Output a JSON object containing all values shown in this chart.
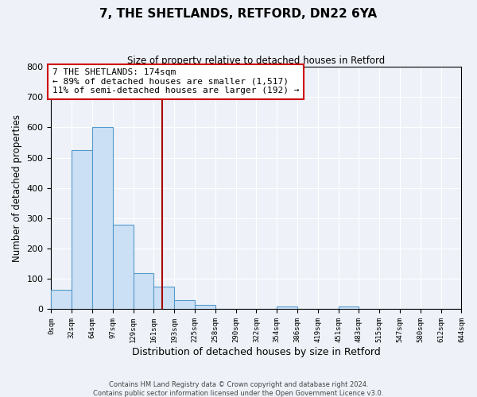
{
  "title": "7, THE SHETLANDS, RETFORD, DN22 6YA",
  "subtitle": "Size of property relative to detached houses in Retford",
  "xlabel": "Distribution of detached houses by size in Retford",
  "ylabel": "Number of detached properties",
  "bar_color": "#cce0f5",
  "bar_edge_color": "#5599cc",
  "background_color": "#eef2f8",
  "bin_edges": [
    0,
    32,
    64,
    97,
    129,
    161,
    193,
    225,
    258,
    290,
    322,
    354,
    386,
    419,
    451,
    483,
    515,
    547,
    580,
    612,
    644
  ],
  "bin_labels": [
    "0sqm",
    "32sqm",
    "64sqm",
    "97sqm",
    "129sqm",
    "161sqm",
    "193sqm",
    "225sqm",
    "258sqm",
    "290sqm",
    "322sqm",
    "354sqm",
    "386sqm",
    "419sqm",
    "451sqm",
    "483sqm",
    "515sqm",
    "547sqm",
    "580sqm",
    "612sqm",
    "644sqm"
  ],
  "counts": [
    65,
    525,
    600,
    280,
    120,
    75,
    30,
    15,
    0,
    0,
    0,
    10,
    0,
    0,
    10,
    0,
    0,
    0,
    0,
    0
  ],
  "vline_x": 174,
  "vline_color": "#aa0000",
  "ylim": [
    0,
    800
  ],
  "yticks": [
    0,
    100,
    200,
    300,
    400,
    500,
    600,
    700,
    800
  ],
  "annotation_title": "7 THE SHETLANDS: 174sqm",
  "annotation_line1": "← 89% of detached houses are smaller (1,517)",
  "annotation_line2": "11% of semi-detached houses are larger (192) →",
  "annotation_box_color": "#ffffff",
  "annotation_box_edge": "#cc0000",
  "footer1": "Contains HM Land Registry data © Crown copyright and database right 2024.",
  "footer2": "Contains public sector information licensed under the Open Government Licence v3.0."
}
